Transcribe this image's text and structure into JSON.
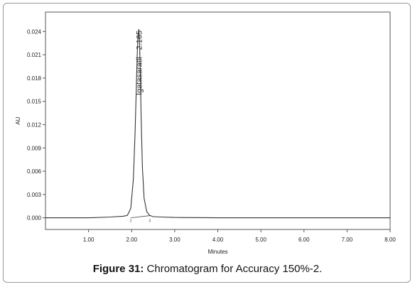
{
  "chart_data": {
    "type": "line",
    "title": "",
    "xlabel": "Minutes",
    "ylabel": "AU",
    "xlim": [
      0.0,
      8.0
    ],
    "ylim": [
      -0.0015,
      0.0265
    ],
    "xticks": [
      "1.00",
      "2.00",
      "3.00",
      "4.00",
      "5.00",
      "6.00",
      "7.00",
      "8.00"
    ],
    "xtick_values": [
      1,
      2,
      3,
      4,
      5,
      6,
      7,
      8
    ],
    "yticks": [
      "0.000",
      "0.003",
      "0.006",
      "0.009",
      "0.012",
      "0.015",
      "0.018",
      "0.021",
      "0.024"
    ],
    "ytick_values": [
      0,
      0.003,
      0.006,
      0.009,
      0.012,
      0.015,
      0.018,
      0.021,
      0.024
    ],
    "grid": false,
    "series": [
      {
        "color": "#333333",
        "x": [
          0.0,
          0.5,
          1.0,
          1.5,
          1.8,
          1.9,
          1.98,
          2.04,
          2.08,
          2.11,
          2.13,
          2.15,
          2.165,
          2.18,
          2.2,
          2.22,
          2.25,
          2.29,
          2.35,
          2.42,
          2.5,
          2.7,
          3.0,
          4.0,
          5.0,
          6.0,
          7.0,
          8.0
        ],
        "y": [
          0.0,
          0.0,
          0.0,
          0.0001,
          0.0002,
          0.0003,
          0.0012,
          0.005,
          0.011,
          0.017,
          0.021,
          0.0235,
          0.0243,
          0.0232,
          0.019,
          0.013,
          0.0065,
          0.0025,
          0.0008,
          0.0003,
          0.00015,
          0.0001,
          5e-05,
          0.0,
          0.0,
          0.0,
          0.0,
          0.0
        ]
      }
    ],
    "baseline": {
      "x": [
        1.98,
        2.42
      ],
      "y": [
        0.0,
        0.00028
      ]
    },
    "annotations": [
      {
        "text": "Igatasaratli - 2.165",
        "x": 2.165,
        "y": 0.0245
      }
    ],
    "integration_markers": [
      {
        "text": "2",
        "x": 1.98
      },
      {
        "text": "3",
        "x": 2.42
      }
    ]
  },
  "caption": {
    "label": "Figure 31:",
    "text": " Chromatogram for Accuracy 150%-2."
  }
}
